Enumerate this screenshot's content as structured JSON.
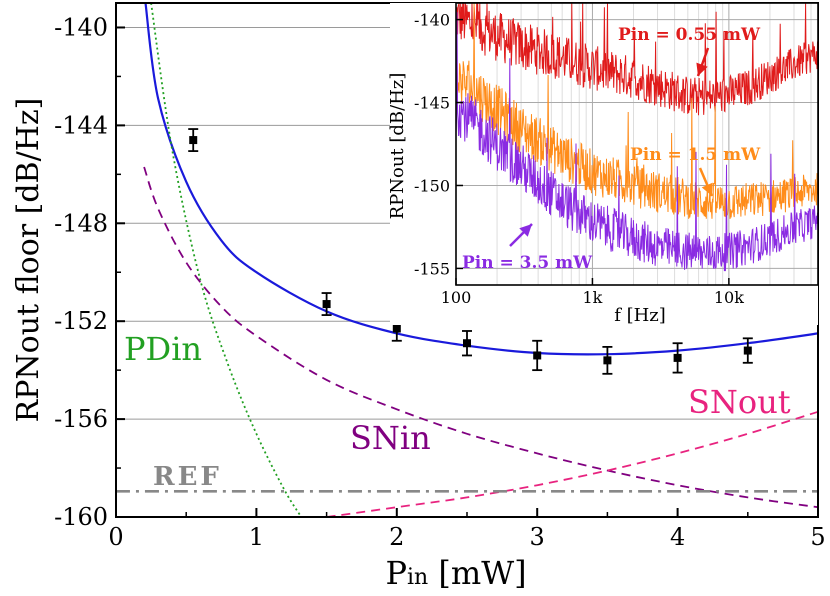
{
  "chart_data": {
    "type": "line",
    "main": {
      "xlabel": {
        "main": "P",
        "sub": "in",
        "unit": " [mW]"
      },
      "ylabel": "RPNout floor [dB/Hz]",
      "xlim": [
        0,
        5
      ],
      "ylim": [
        -160,
        -139
      ],
      "xticks": [
        0,
        1,
        2,
        3,
        4,
        5
      ],
      "xtick_labels": [
        "0",
        "1",
        "2",
        "3",
        "4",
        "5"
      ],
      "yticks": [
        -160,
        -156,
        -152,
        -148,
        -144,
        -140
      ],
      "ytick_labels": [
        "-160",
        "-156",
        "-152",
        "-148",
        "-144",
        "-140"
      ],
      "grid_y": [
        -156,
        -152,
        -148,
        -144,
        -140
      ],
      "measurements": {
        "name": "measured",
        "x": [
          0.55,
          1.5,
          2.0,
          2.5,
          3.0,
          3.5,
          4.0,
          4.5
        ],
        "y": [
          -144.6,
          -151.3,
          -152.3,
          -152.9,
          -153.4,
          -153.6,
          -153.5,
          -153.2
        ],
        "err": [
          0.45,
          0.45,
          0.5,
          0.5,
          0.6,
          0.55,
          0.6,
          0.5
        ],
        "color": "#000000"
      },
      "series": [
        {
          "name": "total",
          "style": "solid",
          "color": "#1a1adb",
          "x": [
            0.21,
            0.3,
            0.5,
            0.75,
            1.0,
            1.5,
            2.0,
            2.5,
            3.0,
            3.5,
            4.0,
            4.5,
            5.0
          ],
          "y": [
            -139.0,
            -142.9,
            -146.3,
            -148.7,
            -150.0,
            -151.6,
            -152.5,
            -153.0,
            -153.3,
            -153.35,
            -153.2,
            -152.9,
            -152.5
          ]
        },
        {
          "name": "PDin",
          "style": "dotted",
          "color": "#22a022",
          "x": [
            0.25,
            0.4,
            0.6,
            0.8,
            1.0,
            1.2,
            1.32
          ],
          "y": [
            -139.0,
            -145.0,
            -150.3,
            -153.8,
            -156.6,
            -158.9,
            -160.0
          ]
        },
        {
          "name": "SNin",
          "style": "dashed",
          "color": "#800080",
          "x": [
            0.2,
            0.3,
            0.5,
            0.75,
            1.0,
            1.5,
            2.0,
            2.5,
            3.0,
            3.5,
            4.0,
            4.5,
            5.0
          ],
          "y": [
            -145.7,
            -147.4,
            -149.6,
            -151.4,
            -152.6,
            -154.4,
            -155.6,
            -156.6,
            -157.4,
            -158.1,
            -158.7,
            -159.2,
            -159.6
          ]
        },
        {
          "name": "SNout",
          "style": "dashed",
          "color": "#e8237f",
          "x": [
            1.5,
            2.0,
            2.5,
            3.0,
            3.5,
            4.0,
            4.5,
            5.0
          ],
          "y": [
            -160.0,
            -159.6,
            -159.2,
            -158.7,
            -158.1,
            -157.4,
            -156.6,
            -155.7
          ]
        },
        {
          "name": "REF",
          "style": "dashdot",
          "color": "#888888",
          "x": [
            0.0,
            5.0
          ],
          "y": [
            -158.95,
            -158.95
          ]
        }
      ],
      "annotations": {
        "pdin": "PDin",
        "snin": "SNin",
        "snout": "SNout",
        "ref": "REF"
      }
    },
    "inset": {
      "type": "line",
      "xscale": "log",
      "xlabel": "f [Hz]",
      "ylabel": "RPNout [dB/Hz]",
      "xlim": [
        100,
        45000
      ],
      "ylim": [
        -156,
        -139
      ],
      "xticks": [
        100,
        1000,
        10000
      ],
      "xtick_labels": [
        "100",
        "1k",
        "10k"
      ],
      "yticks": [
        -155,
        -150,
        -145,
        -140
      ],
      "ytick_labels": [
        "-155",
        "-150",
        "-145",
        "-140"
      ],
      "series": [
        {
          "name": "Pin = 0.55 mW",
          "color": "#e01b1b",
          "x": [
            100,
            150,
            200,
            300,
            500,
            700,
            1000,
            2000,
            3000,
            5000,
            7000,
            10000,
            15000,
            20000,
            30000,
            45000
          ],
          "y": [
            -139.8,
            -140.5,
            -141.0,
            -141.6,
            -142.1,
            -142.5,
            -142.9,
            -143.5,
            -144.0,
            -144.6,
            -144.7,
            -144.5,
            -144.0,
            -143.4,
            -142.7,
            -142.0
          ]
        },
        {
          "name": "Pin = 1.5 mW",
          "color": "#ff8c1a",
          "x": [
            100,
            150,
            200,
            300,
            500,
            700,
            1000,
            2000,
            3000,
            5000,
            7000,
            10000,
            15000,
            20000,
            30000,
            45000
          ],
          "y": [
            -143.5,
            -144.5,
            -145.4,
            -146.6,
            -147.8,
            -148.5,
            -149.2,
            -150.0,
            -150.4,
            -150.8,
            -151.0,
            -151.0,
            -150.9,
            -150.7,
            -150.5,
            -150.2
          ]
        },
        {
          "name": "Pin = 3.5 mW",
          "color": "#8a2be2",
          "x": [
            100,
            150,
            200,
            300,
            500,
            700,
            1000,
            2000,
            3000,
            5000,
            7000,
            10000,
            15000,
            20000,
            30000,
            45000
          ],
          "y": [
            -145.3,
            -146.6,
            -147.6,
            -148.9,
            -150.5,
            -151.4,
            -152.2,
            -153.2,
            -153.7,
            -154.0,
            -154.1,
            -154.0,
            -153.6,
            -153.2,
            -152.6,
            -152.1
          ]
        }
      ],
      "annotations": [
        {
          "text": "Pin = 0.55 mW",
          "color": "#e01b1b"
        },
        {
          "text": "Pin = 1.5 mW",
          "color": "#ff8c1a"
        },
        {
          "text": "Pin = 3.5 mW",
          "color": "#8a2be2"
        }
      ]
    }
  }
}
